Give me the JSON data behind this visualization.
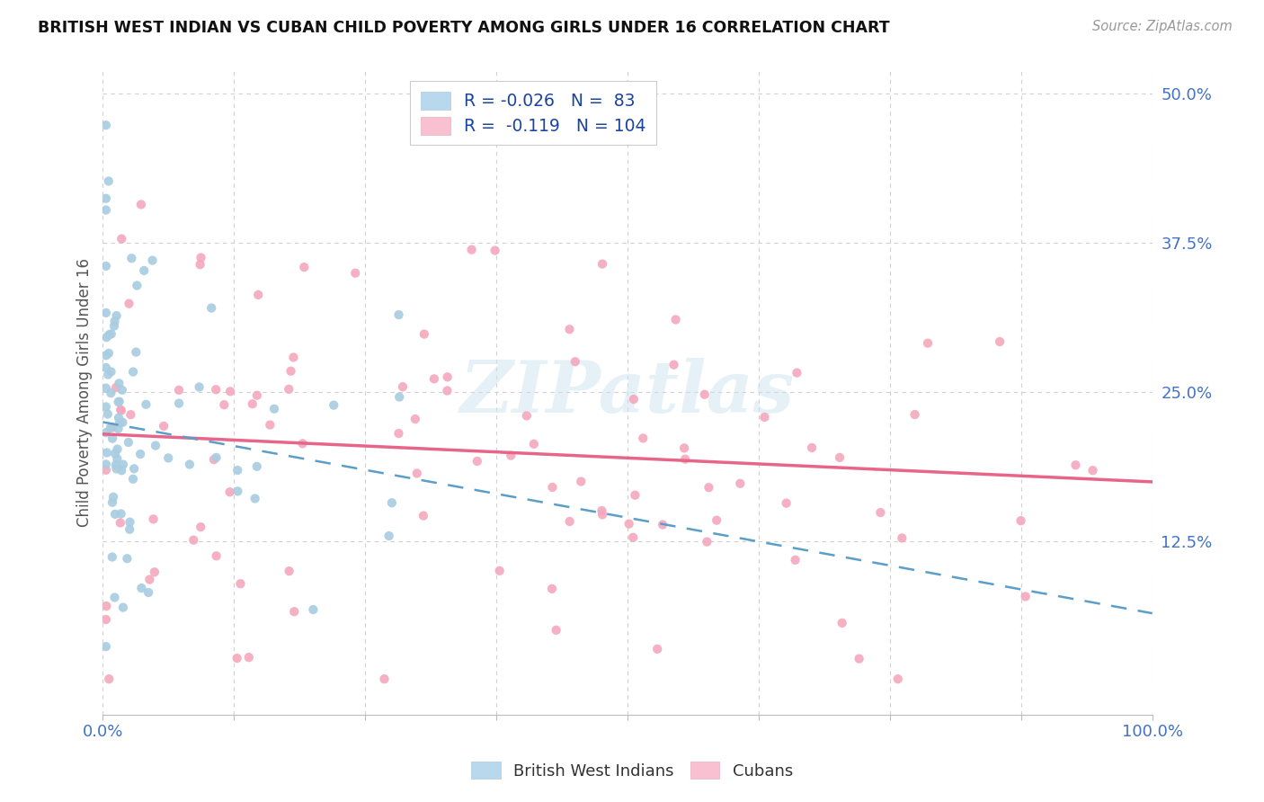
{
  "title": "BRITISH WEST INDIAN VS CUBAN CHILD POVERTY AMONG GIRLS UNDER 16 CORRELATION CHART",
  "source": "Source: ZipAtlas.com",
  "ylabel": "Child Poverty Among Girls Under 16",
  "xlim": [
    0,
    1.0
  ],
  "ylim": [
    -0.02,
    0.52
  ],
  "yticks": [
    0.125,
    0.25,
    0.375,
    0.5
  ],
  "yticklabels": [
    "12.5%",
    "25.0%",
    "37.5%",
    "50.0%"
  ],
  "xtick_positions": [
    0.0,
    0.125,
    0.25,
    0.375,
    0.5,
    0.625,
    0.75,
    0.875,
    1.0
  ],
  "r_bwi": -0.026,
  "n_bwi": 83,
  "r_cuban": -0.119,
  "n_cuban": 104,
  "bwi_color": "#a8cce0",
  "cuban_color": "#f4a8be",
  "bwi_line_color": "#5b9ec9",
  "cuban_line_color": "#e8658a",
  "legend_label_bwi": "British West Indians",
  "legend_label_cuban": "Cubans",
  "tick_color": "#4472c4",
  "grid_color": "#d0d0d0",
  "background_color": "#ffffff",
  "watermark": "ZIPatlas",
  "bwi_trend_start_y": 0.225,
  "bwi_trend_end_y": 0.065,
  "cuban_trend_start_y": 0.215,
  "cuban_trend_end_y": 0.175
}
